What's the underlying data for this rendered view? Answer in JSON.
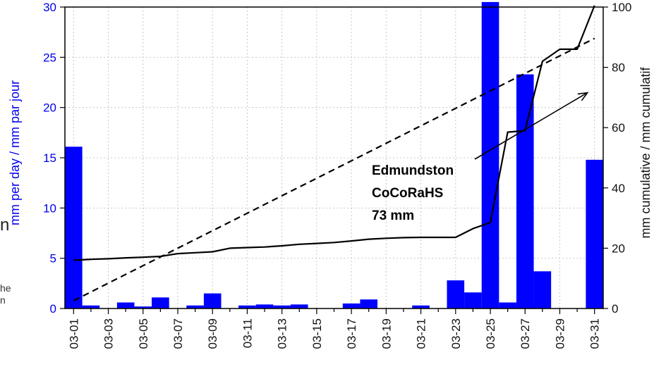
{
  "chart_data": {
    "type": "bar",
    "categories": [
      "03-01",
      "03-02",
      "03-03",
      "03-04",
      "03-05",
      "03-06",
      "03-07",
      "03-08",
      "03-09",
      "03-10",
      "03-11",
      "03-12",
      "03-13",
      "03-14",
      "03-15",
      "03-16",
      "03-17",
      "03-18",
      "03-19",
      "03-20",
      "03-21",
      "03-22",
      "03-23",
      "03-24",
      "03-25",
      "03-26",
      "03-27",
      "03-28",
      "03-29",
      "03-30",
      "03-31"
    ],
    "x_tick_labels": [
      "03-01",
      "03-03",
      "03-05",
      "03-07",
      "03-09",
      "03-11",
      "03-13",
      "03-15",
      "03-17",
      "03-19",
      "03-21",
      "03-23",
      "03-25",
      "03-27",
      "03-29",
      "03-31"
    ],
    "series": [
      {
        "type": "bar",
        "axis": "left",
        "color": "#0000ff",
        "values": [
          16.1,
          0.3,
          0,
          0.6,
          0.2,
          1.1,
          0,
          0.3,
          1.5,
          0,
          0.3,
          0.4,
          0.3,
          0.4,
          0,
          0,
          0.5,
          0.9,
          0,
          0,
          0.3,
          0,
          2.8,
          1.6,
          30.5,
          0.6,
          23.3,
          3.7,
          0,
          0,
          14.8
        ]
      },
      {
        "type": "line",
        "axis": "right",
        "style": "solid",
        "color": "#000000",
        "values": [
          16,
          16.3,
          16.5,
          16.8,
          17,
          17.3,
          18.2,
          18.5,
          18.8,
          20,
          20.2,
          20.4,
          20.8,
          21.3,
          21.6,
          21.9,
          22.4,
          23,
          23.3,
          23.5,
          23.6,
          23.6,
          23.6,
          26.5,
          28.5,
          58.5,
          59,
          82,
          86,
          86,
          100.5
        ]
      },
      {
        "type": "line",
        "axis": "right",
        "style": "dashed",
        "color": "#000000",
        "values": [
          2.6,
          5.5,
          8.4,
          11.3,
          14.2,
          17.1,
          20,
          22.9,
          25.8,
          28.7,
          31.6,
          34.5,
          37.4,
          40.3,
          43.2,
          46.1,
          49,
          51.9,
          54.8,
          57.7,
          60.6,
          63.5,
          66.4,
          69.3,
          72.2,
          75.1,
          78,
          80.9,
          83.8,
          86.7,
          89.6
        ]
      }
    ],
    "ylabel_left": "mm per day / mm par jour",
    "ylabel_right": "mm cumulative / mm cumulatif",
    "ylim_left": [
      0,
      30
    ],
    "yticks_left": [
      "0",
      "5",
      "10",
      "15",
      "20",
      "25",
      "30"
    ],
    "ylim_right": [
      0,
      100
    ],
    "yticks_right": [
      "0",
      "20",
      "40",
      "60",
      "80",
      "100"
    ],
    "grid": true,
    "annotation": {
      "lines": [
        "Edmundston",
        "CoCoRaHS",
        "73 mm"
      ],
      "arrow_target_day": 31,
      "arrow_target_cumulative": 73
    }
  },
  "fragments": {
    "left_big": "n",
    "left_small_1": "he",
    "left_small_2": "n"
  }
}
